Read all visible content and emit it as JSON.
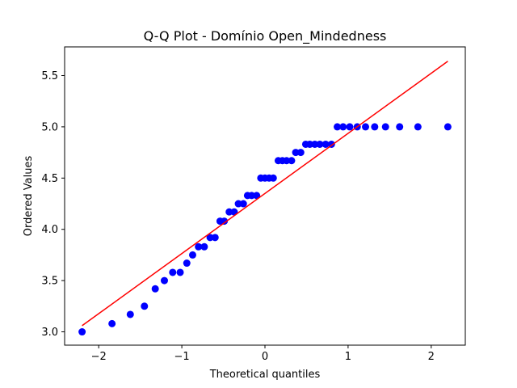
{
  "chart_data": {
    "type": "scatter",
    "title": "Q-Q Plot - Domínio Open_Mindedness",
    "xlabel": "Theoretical quantiles",
    "ylabel": "Ordered Values",
    "xlim": [
      -2.41,
      2.41
    ],
    "ylim": [
      2.87,
      5.78
    ],
    "xticks": [
      -2,
      -1,
      0,
      1,
      2
    ],
    "xtick_labels": [
      "−2",
      "−1",
      "0",
      "1",
      "2"
    ],
    "yticks": [
      3.0,
      3.5,
      4.0,
      4.5,
      5.0,
      5.5
    ],
    "ytick_labels": [
      "3.0",
      "3.5",
      "4.0",
      "4.5",
      "5.0",
      "5.5"
    ],
    "grid": false,
    "colors": {
      "points": "#0000ff",
      "fit_line": "#ff0000",
      "axes": "#000000",
      "background": "#ffffff"
    },
    "series": [
      {
        "kind": "points",
        "x": [
          -2.2,
          -1.84,
          -1.62,
          -1.45,
          -1.32,
          -1.21,
          -1.11,
          -1.02,
          -0.94,
          -0.87,
          -0.8,
          -0.73,
          -0.66,
          -0.6,
          -0.54,
          -0.49,
          -0.43,
          -0.37,
          -0.32,
          -0.26,
          -0.21,
          -0.16,
          -0.1,
          -0.05,
          0.0,
          0.05,
          0.1,
          0.16,
          0.21,
          0.26,
          0.32,
          0.37,
          0.43,
          0.49,
          0.54,
          0.6,
          0.66,
          0.73,
          0.8,
          0.87,
          0.94,
          1.02,
          1.11,
          1.21,
          1.32,
          1.45,
          1.62,
          1.84,
          2.2
        ],
        "y": [
          3.0,
          3.08,
          3.17,
          3.25,
          3.42,
          3.5,
          3.58,
          3.58,
          3.67,
          3.75,
          3.83,
          3.83,
          3.92,
          3.92,
          4.08,
          4.08,
          4.17,
          4.17,
          4.25,
          4.25,
          4.33,
          4.33,
          4.33,
          4.5,
          4.5,
          4.5,
          4.5,
          4.67,
          4.67,
          4.67,
          4.67,
          4.75,
          4.75,
          4.83,
          4.83,
          4.83,
          4.83,
          4.83,
          4.83,
          5.0,
          5.0,
          5.0,
          5.0,
          5.0,
          5.0,
          5.0,
          5.0,
          5.0,
          5.0
        ]
      },
      {
        "kind": "line",
        "x": [
          -2.2,
          2.2
        ],
        "y": [
          3.06,
          5.64
        ]
      }
    ]
  }
}
